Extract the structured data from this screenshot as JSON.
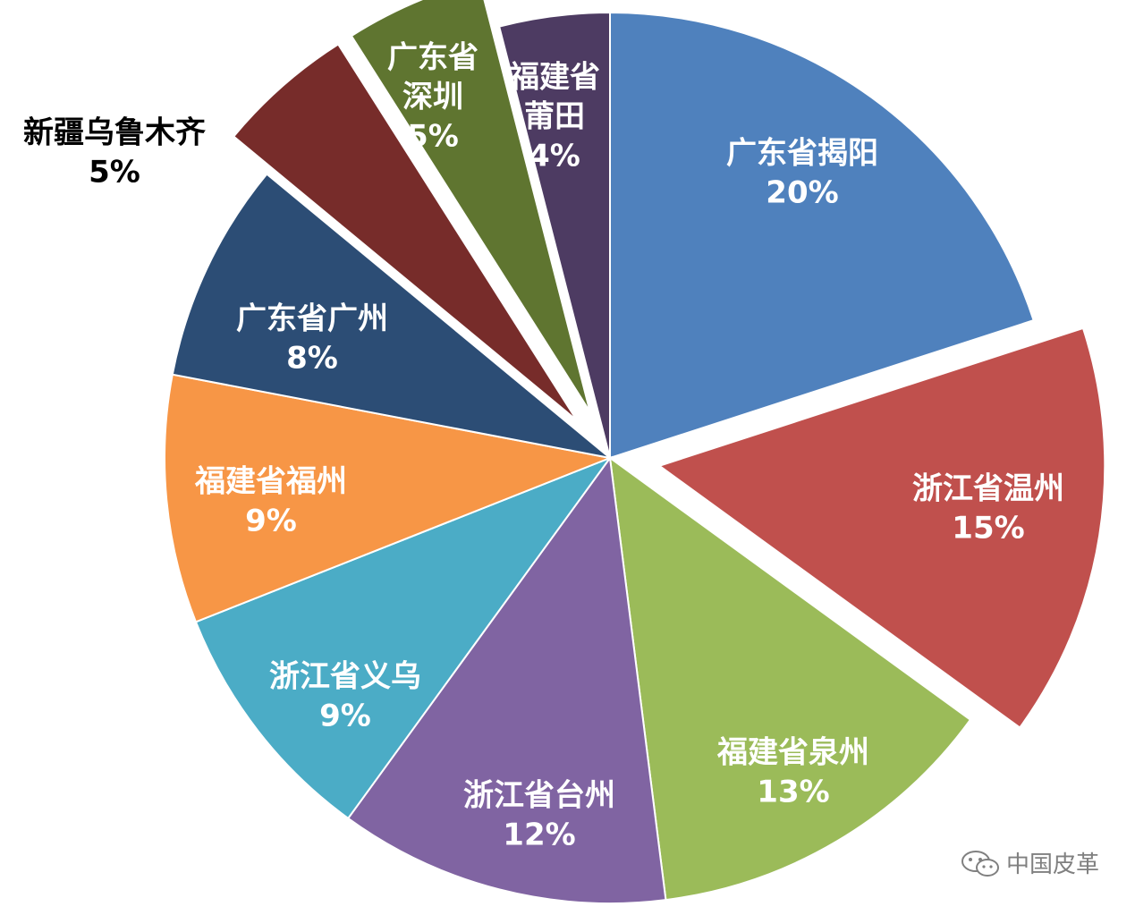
{
  "chart_data": {
    "type": "pie",
    "title": "",
    "slices": [
      {
        "label": "广东省揭阳",
        "value": 20,
        "value_text": "20%",
        "color": "#4f81bd",
        "exploded": false,
        "label_color": "#ffffff"
      },
      {
        "label": "浙江省温州",
        "value": 15,
        "value_text": "15%",
        "color": "#c0504d",
        "exploded": true,
        "label_color": "#ffffff"
      },
      {
        "label": "福建省泉州",
        "value": 13,
        "value_text": "13%",
        "color": "#9bbb59",
        "exploded": false,
        "label_color": "#ffffff"
      },
      {
        "label": "浙江省台州",
        "value": 12,
        "value_text": "12%",
        "color": "#8064a2",
        "exploded": false,
        "label_color": "#ffffff"
      },
      {
        "label": "浙江省义乌",
        "value": 9,
        "value_text": "9%",
        "color": "#4bacc6",
        "exploded": false,
        "label_color": "#ffffff"
      },
      {
        "label": "福建省福州",
        "value": 9,
        "value_text": "9%",
        "color": "#f79646",
        "exploded": false,
        "label_color": "#ffffff"
      },
      {
        "label": "广东省广州",
        "value": 8,
        "value_text": "8%",
        "color": "#2c4d75",
        "exploded": false,
        "label_color": "#ffffff"
      },
      {
        "label": "新疆乌鲁木齐",
        "value": 5,
        "value_text": "5%",
        "color": "#772c2a",
        "exploded": true,
        "label_color": "#000000"
      },
      {
        "label": "广东省深圳",
        "value": 5,
        "value_text": "5%",
        "color": "#5f7530",
        "exploded": true,
        "label_color": "#ffffff"
      },
      {
        "label": "福建省莆田",
        "value": 4,
        "value_text": "4%",
        "color": "#4d3b62",
        "exploded": false,
        "label_color": "#ffffff"
      }
    ],
    "legend": "none"
  },
  "watermark": {
    "text": "中国皮革",
    "icon": "wechat-icon"
  }
}
